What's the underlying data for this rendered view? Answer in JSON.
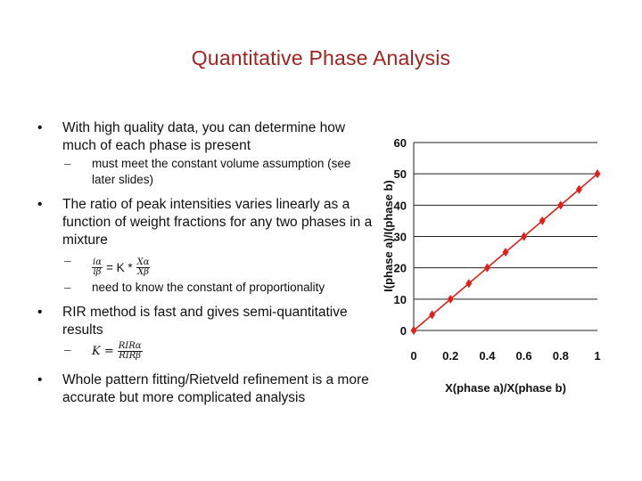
{
  "slide": {
    "title": "Quantitative Phase Analysis",
    "bullets": [
      {
        "text": "With high quality data, you can determine how much of each phase is present",
        "sub": [
          {
            "text": "must meet the constant volume assumption (see later slides)"
          }
        ]
      },
      {
        "text": "The ratio of peak intensities varies linearly as a function of weight fractions for any two phases in a mixture",
        "sub": [
          {
            "formula": {
              "lhs_num": "iα",
              "lhs_den": "iβ",
              "op": "= K *",
              "rhs_num": "Xα",
              "rhs_den": "Xβ"
            }
          },
          {
            "text": "need to know the constant of proportionality"
          }
        ]
      },
      {
        "text": "RIR method is fast and gives semi-quantitative results",
        "sub": [
          {
            "formula": {
              "lhs": "K =",
              "num": "RIRα",
              "den": "RIRβ"
            }
          }
        ]
      },
      {
        "text": "Whole pattern fitting/Rietveld refinement is a more accurate but more complicated analysis",
        "sub": []
      }
    ]
  },
  "chart_data": {
    "type": "line",
    "xlabel": "X(phase a)/X(phase b)",
    "ylabel": "I(phase a)/I(phase b)",
    "x_ticks": [
      "0",
      "0.2",
      "0.4",
      "0.6",
      "0.8",
      "1"
    ],
    "y_ticks": [
      "0",
      "10",
      "20",
      "30",
      "40",
      "50",
      "60"
    ],
    "xlim": [
      0,
      1
    ],
    "ylim": [
      0,
      60
    ],
    "grid": "horizontal",
    "x": [
      0,
      0.1,
      0.2,
      0.3,
      0.4,
      0.5,
      0.6,
      0.7,
      0.8,
      0.9,
      1.0
    ],
    "y": [
      0,
      5,
      10,
      15,
      20,
      25,
      30,
      35,
      40,
      45,
      50
    ],
    "color": "#e0201c",
    "marker": "diamond"
  }
}
